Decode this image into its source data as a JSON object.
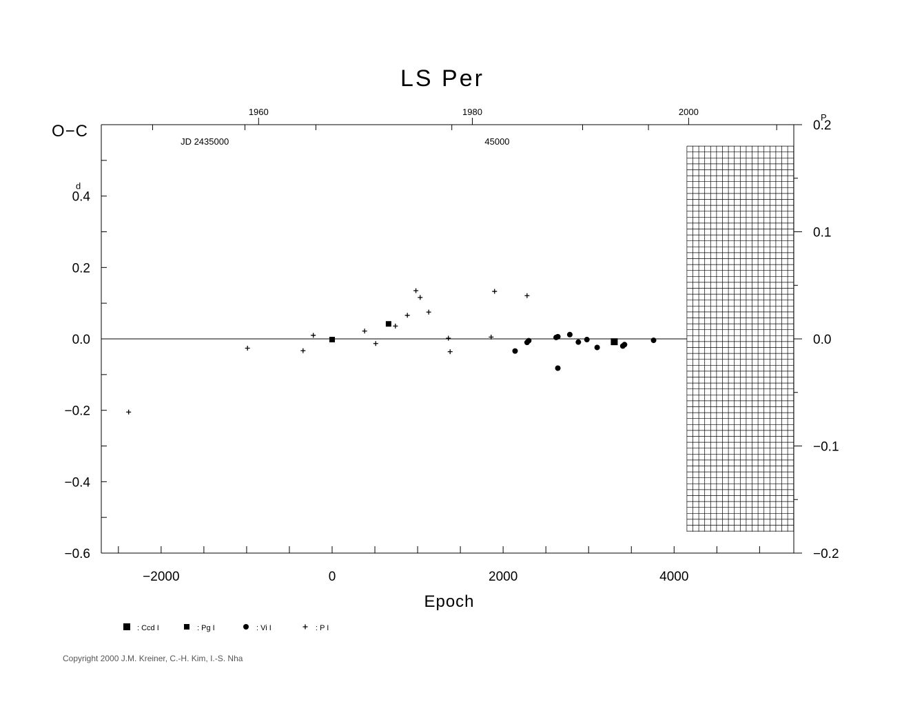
{
  "chart_data": {
    "type": "scatter",
    "title": "LS Per",
    "xlabel": "Epoch",
    "ylabel": "O−C",
    "ylabel_unit": "d",
    "y2_unit": "P",
    "xlim": [
      -2700,
      5400
    ],
    "ylim": [
      -0.6,
      0.6
    ],
    "y2lim": [
      -0.2,
      0.2
    ],
    "x_ticks": [
      {
        "value": -2000,
        "label": "−2000"
      },
      {
        "value": 0,
        "label": "0"
      },
      {
        "value": 2000,
        "label": "2000"
      },
      {
        "value": 4000,
        "label": "4000"
      }
    ],
    "y_ticks": [
      {
        "value": 0.4,
        "label": "0.4",
        "marked": true
      },
      {
        "value": 0.2,
        "label": "0.2"
      },
      {
        "value": 0.0,
        "label": "0.0"
      },
      {
        "value": -0.2,
        "label": "−0.2"
      },
      {
        "value": -0.4,
        "label": "−0.4"
      },
      {
        "value": -0.6,
        "label": "−0.6"
      }
    ],
    "y2_ticks": [
      {
        "value": 0.2,
        "label": "0.2",
        "marked": true
      },
      {
        "value": 0.1,
        "label": "0.1"
      },
      {
        "value": 0.0,
        "label": "0.0"
      },
      {
        "value": -0.1,
        "label": "−0.1"
      },
      {
        "value": -0.2,
        "label": "−0.2"
      }
    ],
    "top_year_ticks": [
      {
        "x": -860,
        "label": "1960"
      },
      {
        "x": 1640,
        "label": "1980"
      },
      {
        "x": 4170,
        "label": "2000"
      }
    ],
    "jd_labels": [
      {
        "x": -1490,
        "label": "JD 2435000"
      },
      {
        "x": 1930,
        "label": "45000"
      }
    ],
    "future_grid": {
      "x_start": 4150,
      "x_end": 5400,
      "y_top": 0.54,
      "y_bottom": -0.54
    },
    "series": [
      {
        "name": ": Ccd I",
        "marker": "square-large",
        "points": [
          [
            3300,
            -0.008
          ]
        ]
      },
      {
        "name": ": Pg I",
        "marker": "square-small",
        "points": [
          [
            0,
            -0.002
          ],
          [
            660,
            0.042
          ]
        ]
      },
      {
        "name": ": Vi I",
        "marker": "dot",
        "points": [
          [
            2140,
            -0.034
          ],
          [
            2280,
            -0.01
          ],
          [
            2300,
            -0.005
          ],
          [
            2620,
            0.004
          ],
          [
            2640,
            0.006
          ],
          [
            2640,
            -0.082
          ],
          [
            2780,
            0.012
          ],
          [
            2880,
            -0.009
          ],
          [
            2980,
            -0.002
          ],
          [
            3100,
            -0.024
          ],
          [
            3400,
            -0.02
          ],
          [
            3420,
            -0.016
          ],
          [
            3760,
            -0.004
          ]
        ]
      },
      {
        "name": ": P I",
        "marker": "plus",
        "points": [
          [
            -2380,
            -0.205
          ],
          [
            -990,
            -0.026
          ],
          [
            -340,
            -0.033
          ],
          [
            -220,
            0.01
          ],
          [
            380,
            0.022
          ],
          [
            510,
            -0.013
          ],
          [
            740,
            0.036
          ],
          [
            880,
            0.066
          ],
          [
            980,
            0.135
          ],
          [
            1030,
            0.116
          ],
          [
            1130,
            0.075
          ],
          [
            1360,
            0.002
          ],
          [
            1380,
            -0.036
          ],
          [
            1860,
            0.005
          ],
          [
            1900,
            0.133
          ],
          [
            2280,
            0.121
          ]
        ]
      }
    ]
  },
  "copyright": "Copyright 2000 J.M. Kreiner, C.-H. Kim, I.-S. Nha"
}
